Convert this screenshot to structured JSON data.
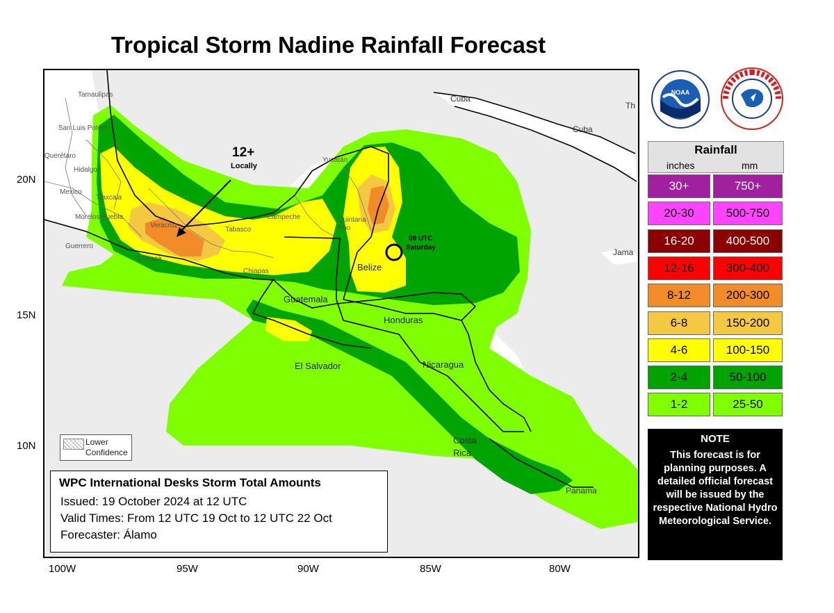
{
  "title": "Tropical Storm Nadine Rainfall Forecast",
  "map": {
    "colors": {
      "land": "#ffffff",
      "ocean": "#ececec",
      "c1_2": "#7fff00",
      "c2_4": "#00a400",
      "c4_6": "#ffff00",
      "c6_8": "#f5c842",
      "c8_12": "#f28c28",
      "c12_16": "#ff0000",
      "c16_20": "#8b0000",
      "c20_30": "#ff44ff",
      "c30": "#a020a0",
      "border": "#000000"
    },
    "place_labels": {
      "cuba1": "Cuba",
      "cuba2": "Cuba",
      "th": "Th",
      "jama": "Jama",
      "tamaulipas": "Tamaulipas",
      "sanluis": "San Luis Potosí",
      "queretaro": "Querétaro",
      "hidalgo": "Hidalgo",
      "mexico": "Mexico",
      "tlaxcala": "Tlaxcala",
      "morelos": "Morelos",
      "puebla": "Puebla",
      "guerrero": "Guerrero",
      "oaxaca": "Oaxaca",
      "veracruz": "Veracruz",
      "tabasco": "Tabasco",
      "campeche": "Campeche",
      "yucatan": "Yucatán",
      "quintana": "Quintana\nRoo",
      "chiapas": "Chiapas",
      "belize": "Belize",
      "guatemala": "Guatemala",
      "honduras": "Honduras",
      "elsalvador": "El Salvador",
      "nicaragua": "Nicaragua",
      "costarica": "Costa\nRica",
      "panama": "Panama"
    },
    "annotation_amount": "12+",
    "annotation_locally": "Locally",
    "storm_marker_label_1": "09 UTC",
    "storm_marker_label_2": "Saturday",
    "lower_confidence": "Lower\nConfidence",
    "lat_labels": [
      "20N",
      "15N",
      "10N"
    ],
    "lon_labels": [
      "100W",
      "95W",
      "90W",
      "85W",
      "80W"
    ]
  },
  "info_box": {
    "heading": "WPC International Desks Storm Total Amounts",
    "issued": "Issued:  19 October 2024 at 12 UTC",
    "valid": "Valid Times:  From 12 UTC 19 Oct  to 12 UTC 22 Oct",
    "forecaster": "Forecaster: Álamo"
  },
  "logos": {
    "noaa": "NOAA",
    "nws": "NATIONAL WEATHER SERVICE"
  },
  "legend": {
    "title": "Rainfall",
    "unit_in": "inches",
    "unit_mm": "mm",
    "rows": [
      {
        "inches": "30+",
        "mm": "750+",
        "color": "#a020a0",
        "text_color": "#ffffff"
      },
      {
        "inches": "20-30",
        "mm": "500-750",
        "color": "#ff44ff",
        "text_color": "#000000"
      },
      {
        "inches": "16-20",
        "mm": "400-500",
        "color": "#8b0000",
        "text_color": "#ffffff"
      },
      {
        "inches": "12-16",
        "mm": "300-400",
        "color": "#ff0000",
        "text_color": "#000000"
      },
      {
        "inches": "8-12",
        "mm": "200-300",
        "color": "#f28c28",
        "text_color": "#000000"
      },
      {
        "inches": "6-8",
        "mm": "150-200",
        "color": "#f5c842",
        "text_color": "#000000"
      },
      {
        "inches": "4-6",
        "mm": "100-150",
        "color": "#ffff00",
        "text_color": "#000000"
      },
      {
        "inches": "2-4",
        "mm": "50-100",
        "color": "#00a400",
        "text_color": "#000000"
      },
      {
        "inches": "1-2",
        "mm": "25-50",
        "color": "#7fff00",
        "text_color": "#000000"
      }
    ]
  },
  "note": {
    "title": "NOTE",
    "body": "This forecast is for planning purposes. A detailed official forecast will be issued by the respective National Hydro Meteorological Service."
  }
}
